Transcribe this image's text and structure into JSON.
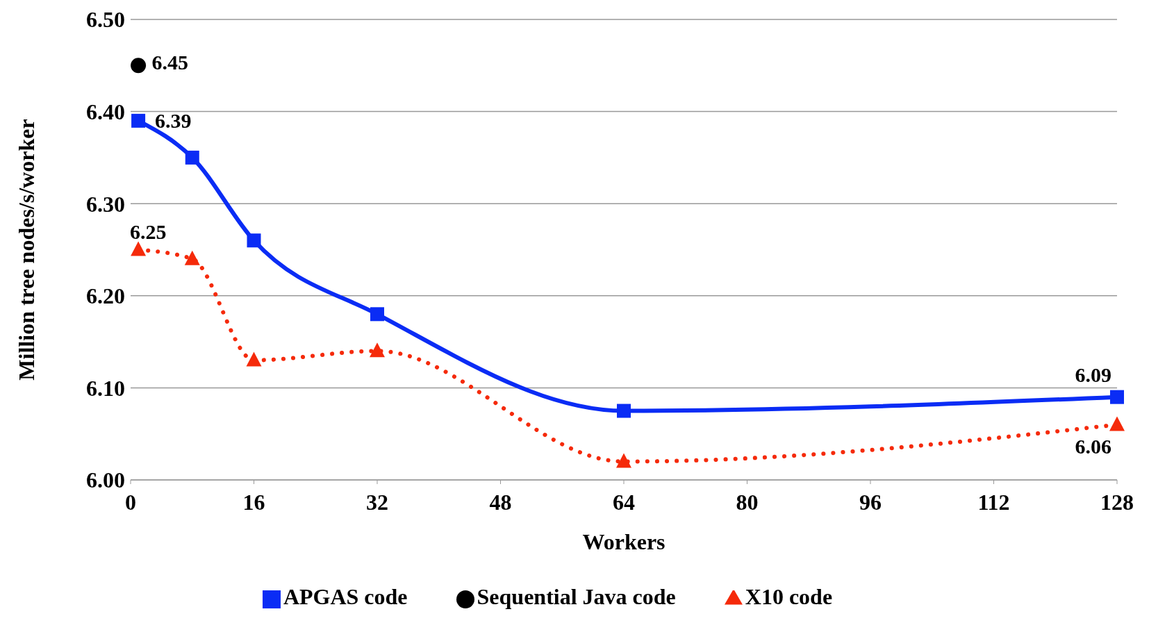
{
  "chart_data": {
    "type": "line",
    "xlabel": "Workers",
    "ylabel": "Million tree nodes/s/worker",
    "xlim": [
      0,
      128
    ],
    "xticks": [
      0,
      16,
      32,
      48,
      64,
      80,
      96,
      112,
      128
    ],
    "ylim": [
      6.0,
      6.5
    ],
    "yticks": [
      {
        "value": 6.0,
        "label": "6.00"
      },
      {
        "value": 6.1,
        "label": "6.10"
      },
      {
        "value": 6.2,
        "label": "6.20"
      },
      {
        "value": 6.3,
        "label": "6.30"
      },
      {
        "value": 6.4,
        "label": "6.40"
      },
      {
        "value": 6.5,
        "label": "6.50"
      }
    ],
    "grid": "y",
    "legend": "bottom",
    "series": [
      {
        "name": "APGAS code",
        "color": "#0a2cf5",
        "marker": "square",
        "line_style": "solid",
        "x": [
          1,
          8,
          16,
          32,
          64,
          128
        ],
        "values": [
          6.39,
          6.35,
          6.26,
          6.18,
          6.075,
          6.09
        ],
        "value_labels": [
          "6.39",
          null,
          null,
          null,
          null,
          "6.09"
        ]
      },
      {
        "name": "Sequential Java code",
        "type": "scatter",
        "color": "#000000",
        "marker": "circle",
        "x": [
          1
        ],
        "values": [
          6.45
        ],
        "value_labels": [
          "6.45"
        ]
      },
      {
        "name": "X10 code",
        "color": "#f52a0a",
        "marker": "triangle",
        "line_style": "dotted",
        "x": [
          1,
          8,
          16,
          32,
          64,
          128
        ],
        "values": [
          6.25,
          6.24,
          6.13,
          6.14,
          6.02,
          6.06
        ],
        "value_labels": [
          "6.25",
          null,
          null,
          null,
          null,
          "6.06"
        ]
      }
    ]
  }
}
